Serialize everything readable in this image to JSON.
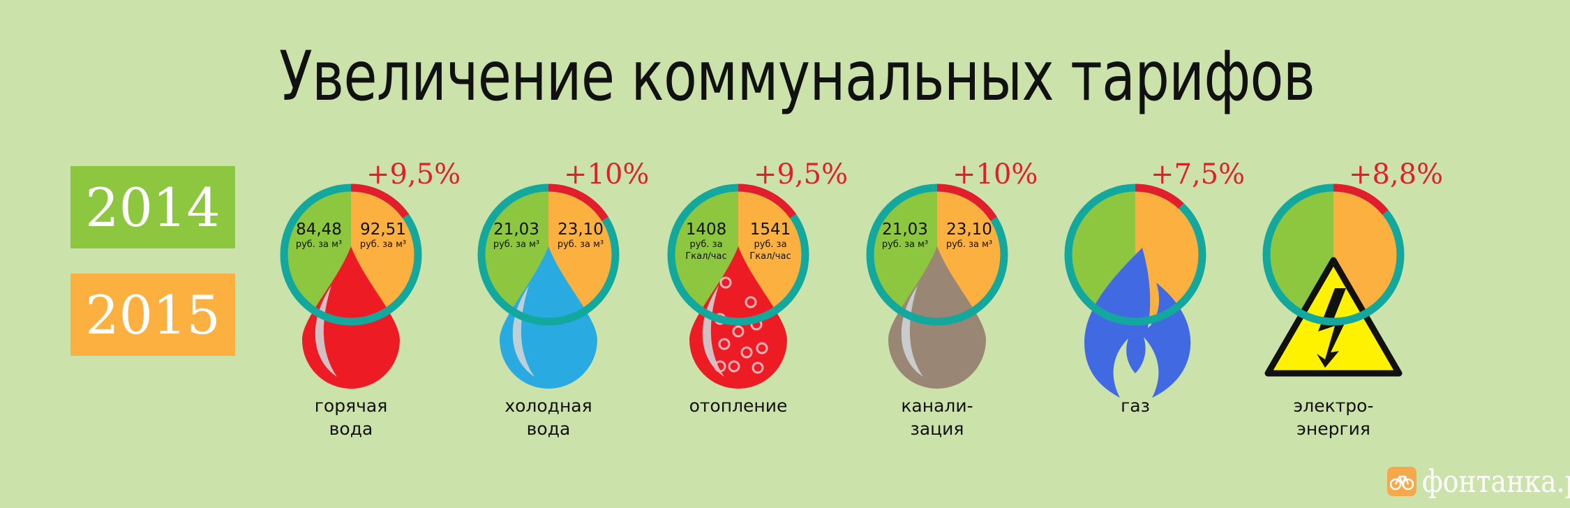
{
  "title": "Увеличение коммунальных тарифов",
  "legend": [
    {
      "year": "2014",
      "color": "#8dc63f"
    },
    {
      "year": "2015",
      "color": "#fbb040"
    }
  ],
  "colors": {
    "ring": "#13a89e",
    "increase_arc": "#e21e2c",
    "value_2014": "#8dc63f",
    "value_2015": "#fbb040",
    "percent_text": "#e21e2c"
  },
  "chart_data": {
    "type": "pie",
    "title": "Увеличение коммунальных тарифов",
    "series": [
      {
        "name": "2014"
      },
      {
        "name": "2015"
      }
    ],
    "items": [
      {
        "id": "hot-water",
        "caption": [
          "горячая",
          "вода"
        ],
        "increase": "+9,5%",
        "increase_value": 9.5,
        "v2014": "84,48",
        "v2015": "92,51",
        "unit2014": [
          "руб. за м³"
        ],
        "unit2015": [
          "руб. за м³"
        ],
        "icon": "drop-icon",
        "icon_color": "#ed1c24"
      },
      {
        "id": "cold-water",
        "caption": [
          "холодная",
          "вода"
        ],
        "increase": "+10%",
        "increase_value": 10,
        "v2014": "21,03",
        "v2015": "23,10",
        "unit2014": [
          "руб. за м³"
        ],
        "unit2015": [
          "руб. за м³"
        ],
        "icon": "drop-icon",
        "icon_color": "#29abe2"
      },
      {
        "id": "heating",
        "caption": [
          "отопление"
        ],
        "increase": "+9,5%",
        "increase_value": 9.5,
        "v2014": "1408",
        "v2015": "1541",
        "unit2014": [
          "руб. за",
          "Гкал/час"
        ],
        "unit2015": [
          "руб. за",
          "Гкал/час"
        ],
        "icon": "hot-drop-icon",
        "icon_color": "#ed1c24"
      },
      {
        "id": "sewerage",
        "caption": [
          "канали-",
          "зация"
        ],
        "increase": "+10%",
        "increase_value": 10,
        "v2014": "21,03",
        "v2015": "23,10",
        "unit2014": [
          "руб. за м³"
        ],
        "unit2015": [
          "руб. за м³"
        ],
        "icon": "drop-icon",
        "icon_color": "#998675"
      },
      {
        "id": "gas",
        "caption": [
          "газ"
        ],
        "increase": "+7,5%",
        "increase_value": 7.5,
        "v2014": "",
        "v2015": "",
        "unit2014": [],
        "unit2015": [],
        "icon": "flame-icon",
        "icon_color": "#4169e1"
      },
      {
        "id": "electricity",
        "caption": [
          "электро-",
          "энергия"
        ],
        "increase": "+8,8%",
        "increase_value": 8.8,
        "v2014": "",
        "v2015": "",
        "unit2014": [],
        "unit2015": [],
        "icon": "high-voltage-icon",
        "icon_color": "#fff200"
      }
    ]
  },
  "logo": {
    "text": "фонтанка.ру",
    "mark": "®",
    "icon": "bicycle-logo-icon"
  }
}
